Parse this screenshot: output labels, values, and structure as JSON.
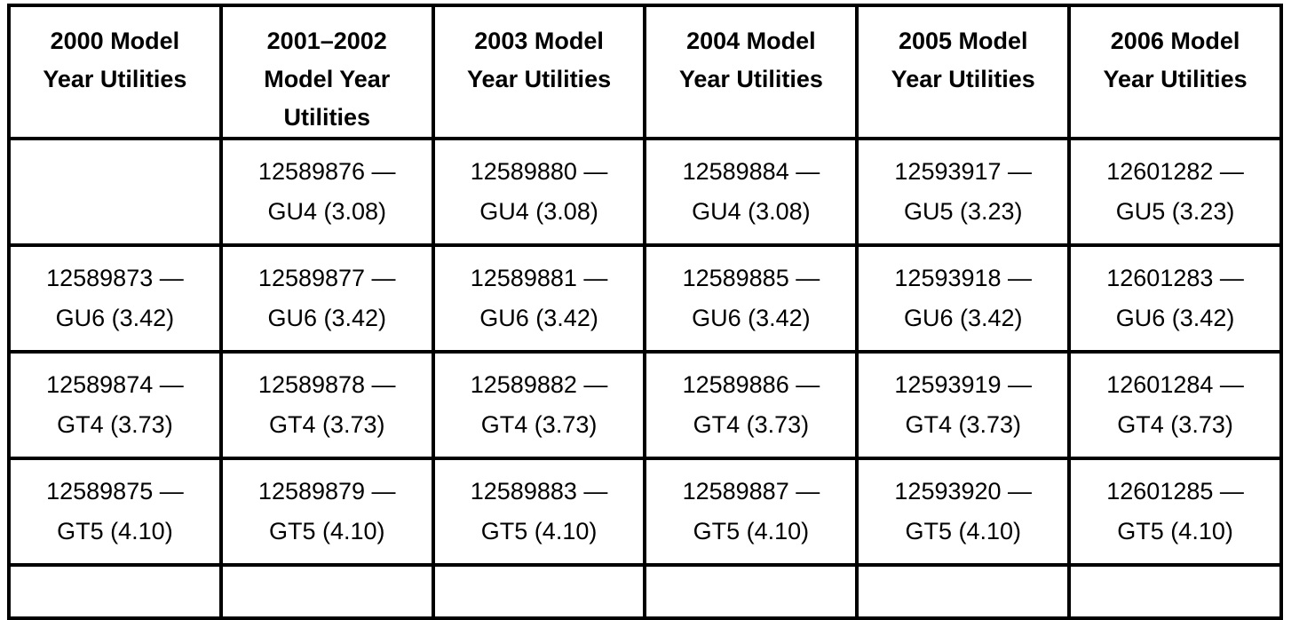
{
  "colors": {
    "page_background": "#ffffff",
    "border": "#000000",
    "text": "#000000"
  },
  "table": {
    "columns": [
      {
        "header_lines": [
          "2000 Model",
          "Year Utilities"
        ]
      },
      {
        "header_lines": [
          "2001–2002",
          "Model Year",
          "Utilities"
        ]
      },
      {
        "header_lines": [
          "2003 Model",
          "Year Utilities"
        ]
      },
      {
        "header_lines": [
          "2004 Model",
          "Year Utilities"
        ]
      },
      {
        "header_lines": [
          "2005 Model",
          "Year Utilities"
        ]
      },
      {
        "header_lines": [
          "2006 Model",
          "Year Utilities"
        ]
      }
    ],
    "rows": [
      [
        {
          "part_number": "",
          "ratio_code": ""
        },
        {
          "part_number": "12589876 —",
          "ratio_code": "GU4 (3.08)"
        },
        {
          "part_number": "12589880 —",
          "ratio_code": "GU4 (3.08)"
        },
        {
          "part_number": "12589884 —",
          "ratio_code": "GU4 (3.08)"
        },
        {
          "part_number": "12593917 —",
          "ratio_code": "GU5 (3.23)"
        },
        {
          "part_number": "12601282 —",
          "ratio_code": "GU5 (3.23)"
        }
      ],
      [
        {
          "part_number": "12589873 —",
          "ratio_code": "GU6 (3.42)"
        },
        {
          "part_number": "12589877 —",
          "ratio_code": "GU6 (3.42)"
        },
        {
          "part_number": "12589881 —",
          "ratio_code": "GU6 (3.42)"
        },
        {
          "part_number": "12589885 —",
          "ratio_code": "GU6 (3.42)"
        },
        {
          "part_number": "12593918 —",
          "ratio_code": "GU6 (3.42)"
        },
        {
          "part_number": "12601283 —",
          "ratio_code": "GU6 (3.42)"
        }
      ],
      [
        {
          "part_number": "12589874 —",
          "ratio_code": "GT4 (3.73)"
        },
        {
          "part_number": "12589878 —",
          "ratio_code": "GT4 (3.73)"
        },
        {
          "part_number": "12589882 —",
          "ratio_code": "GT4 (3.73)"
        },
        {
          "part_number": "12589886 —",
          "ratio_code": "GT4 (3.73)"
        },
        {
          "part_number": "12593919 —",
          "ratio_code": "GT4 (3.73)"
        },
        {
          "part_number": "12601284 —",
          "ratio_code": "GT4 (3.73)"
        }
      ],
      [
        {
          "part_number": "12589875 —",
          "ratio_code": "GT5 (4.10)"
        },
        {
          "part_number": "12589879 —",
          "ratio_code": "GT5 (4.10)"
        },
        {
          "part_number": "12589883 —",
          "ratio_code": "GT5 (4.10)"
        },
        {
          "part_number": "12589887 —",
          "ratio_code": "GT5 (4.10)"
        },
        {
          "part_number": "12593920 —",
          "ratio_code": "GT5 (4.10)"
        },
        {
          "part_number": "12601285 —",
          "ratio_code": "GT5 (4.10)"
        }
      ]
    ]
  }
}
